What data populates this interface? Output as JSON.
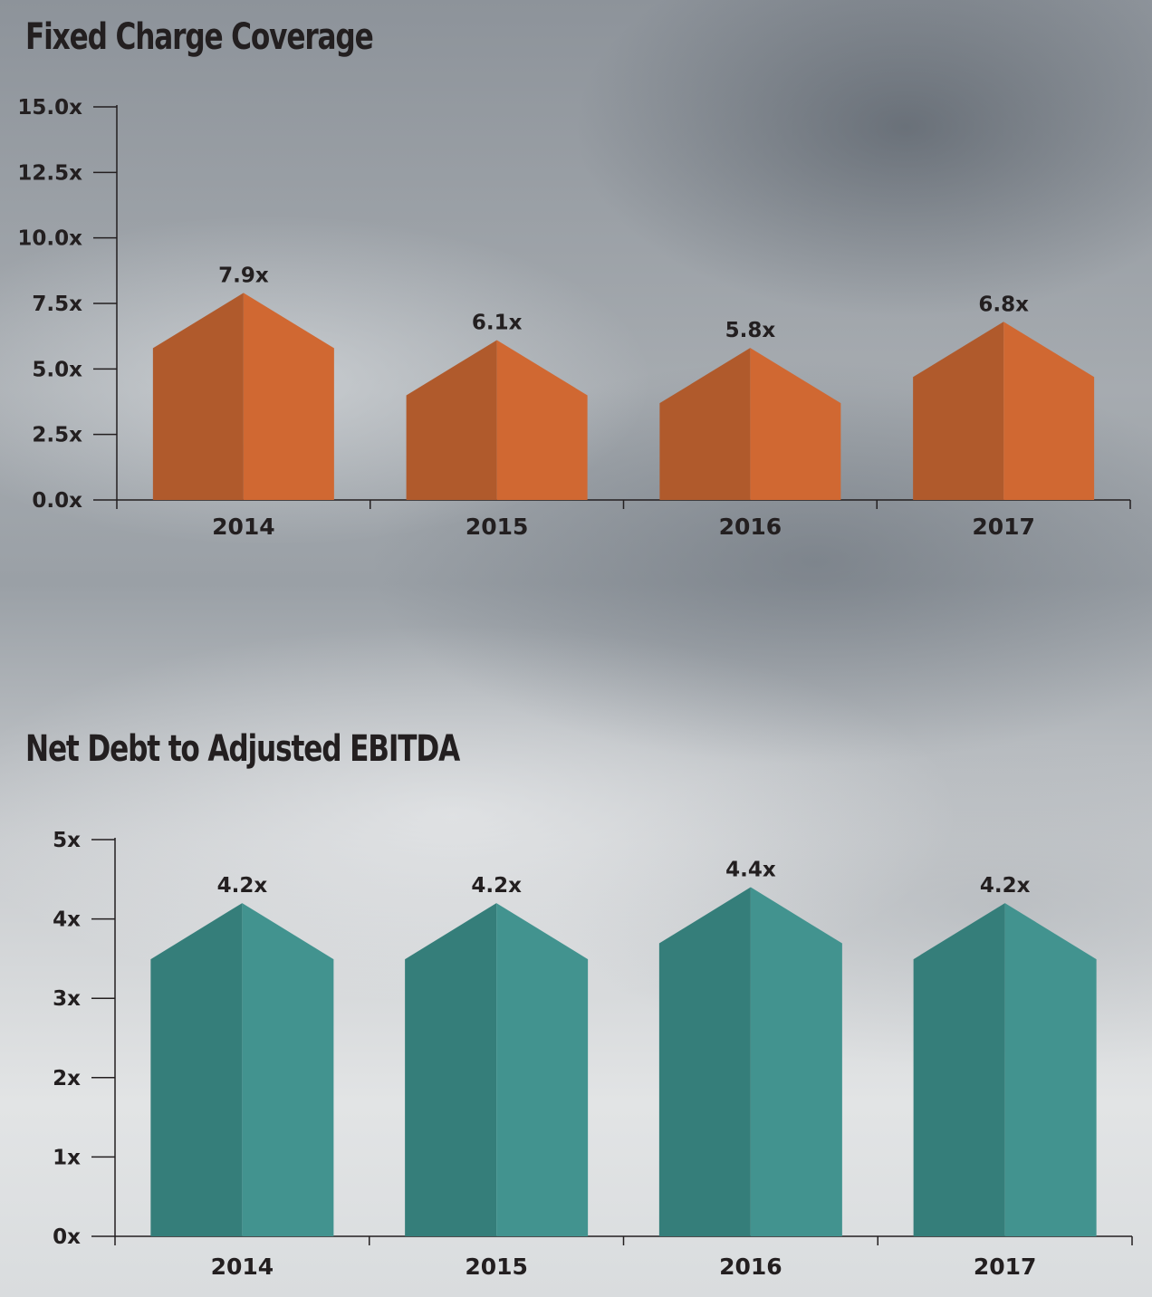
{
  "chart_data": [
    {
      "type": "bar",
      "title": "Fixed Charge Coverage",
      "categories": [
        "2014",
        "2015",
        "2016",
        "2017"
      ],
      "values": [
        7.9,
        6.1,
        5.8,
        6.8
      ],
      "value_labels": [
        "7.9x",
        "6.1x",
        "5.8x",
        "6.8x"
      ],
      "yticks": [
        0,
        2.5,
        5,
        7.5,
        10,
        12.5,
        15
      ],
      "ytick_labels": [
        "0.0x",
        "2.5x",
        "5.0x",
        "7.5x",
        "10.0x",
        "12.5x",
        "15.0x"
      ],
      "ylim": [
        0,
        15
      ],
      "xlabel": "",
      "ylabel": "",
      "grid": false,
      "colors": {
        "dark": "#b05a2c",
        "light": "#d06832"
      }
    },
    {
      "type": "bar",
      "title": "Net Debt to Adjusted EBITDA",
      "categories": [
        "2014",
        "2015",
        "2016",
        "2017"
      ],
      "values": [
        4.2,
        4.2,
        4.4,
        4.2
      ],
      "value_labels": [
        "4.2x",
        "4.2x",
        "4.4x",
        "4.2x"
      ],
      "yticks": [
        0,
        1,
        2,
        3,
        4,
        5
      ],
      "ytick_labels": [
        "0x",
        "1x",
        "2x",
        "3x",
        "4x",
        "5x"
      ],
      "ylim": [
        0,
        5
      ],
      "xlabel": "",
      "ylabel": "",
      "grid": false,
      "colors": {
        "dark": "#357e7a",
        "light": "#42938f"
      }
    }
  ]
}
